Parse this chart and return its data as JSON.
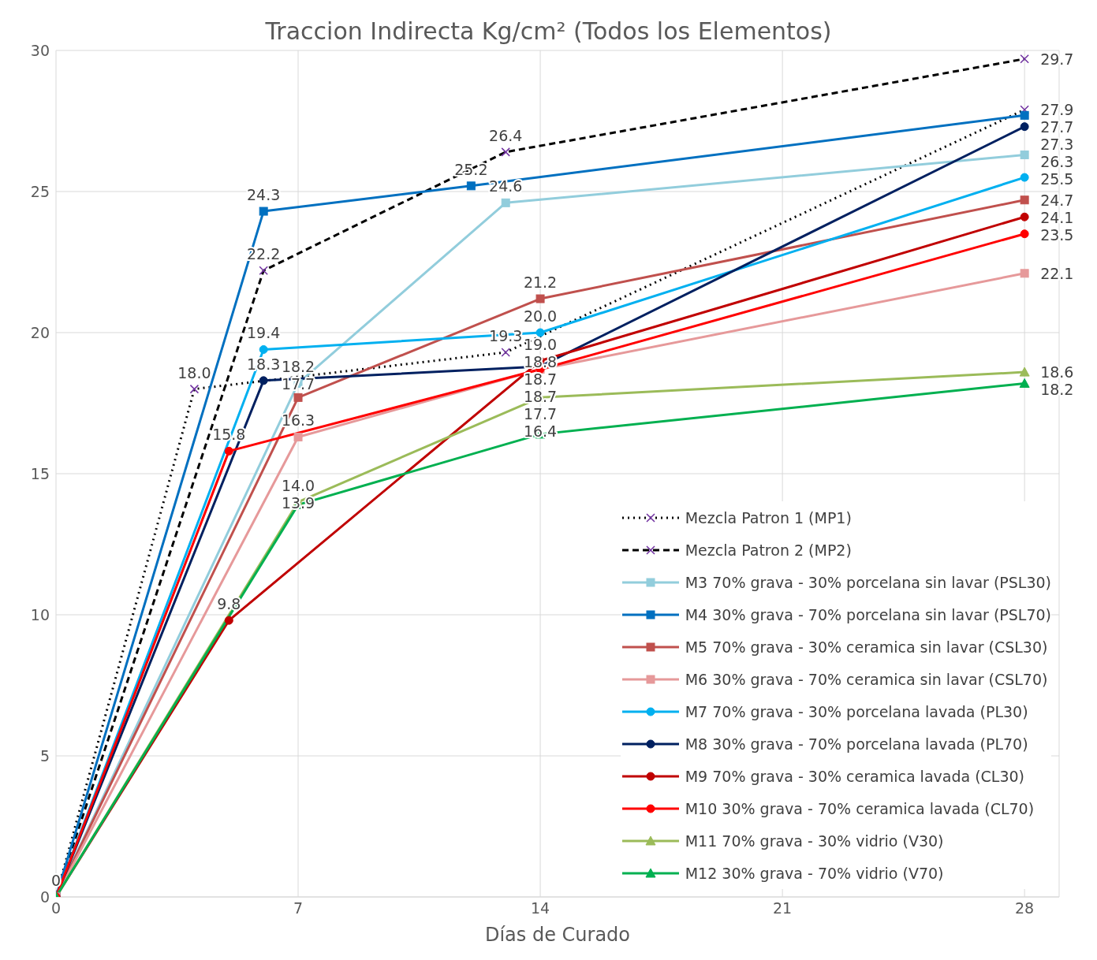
{
  "chart_data": {
    "type": "line",
    "title": "Traccion Indirecta Kg/cm² (Todos los Elementos)",
    "xlabel": "Días de Curado",
    "xlim": [
      0,
      29
    ],
    "xticks": [
      0,
      7,
      14,
      21,
      28
    ],
    "ylim": [
      0,
      30
    ],
    "yticks": [
      0,
      5,
      10,
      15,
      20,
      25,
      30
    ],
    "grid": true,
    "legend": "bottom right",
    "series": [
      {
        "name": "Mezcla Patron 1 (MP1)",
        "color": "#000000",
        "line_style": "dotted",
        "marker": "cross",
        "x": [
          0,
          4,
          13,
          28
        ],
        "values": [
          0,
          18.0,
          19.3,
          27.9
        ],
        "value_labels": [
          "0",
          "18.0",
          "19.3",
          "27.9"
        ]
      },
      {
        "name": "Mezcla Patron 2 (MP2)",
        "color": "#000000",
        "line_style": "dashed",
        "marker": "cross",
        "x": [
          0,
          6,
          13,
          28
        ],
        "values": [
          0,
          22.2,
          26.4,
          29.7
        ],
        "value_labels": [
          null,
          "22.2",
          "26.4",
          "29.7"
        ]
      },
      {
        "name": "M3 70% grava - 30% porcelana sin lavar (PSL30)",
        "color": "#92cddc",
        "marker": "square",
        "x": [
          0,
          7,
          13,
          28
        ],
        "values": [
          0,
          18.2,
          24.6,
          26.3
        ],
        "value_labels": [
          null,
          "18.2",
          "24.6",
          "26.3"
        ]
      },
      {
        "name": "M4 30% grava - 70% porcelana sin lavar (PSL70)",
        "color": "#0070c0",
        "marker": "square",
        "x": [
          0,
          6,
          12,
          28
        ],
        "values": [
          0,
          24.3,
          25.2,
          27.7
        ],
        "value_labels": [
          null,
          "24.3",
          "25.2",
          "27.7"
        ]
      },
      {
        "name": "M5 70% grava - 30% ceramica sin lavar (CSL30)",
        "color": "#c0504d",
        "marker": "square",
        "x": [
          0,
          7,
          14,
          28
        ],
        "values": [
          0,
          17.7,
          21.2,
          24.7
        ],
        "value_labels": [
          null,
          "17.7",
          "21.2",
          "24.7"
        ]
      },
      {
        "name": "M6 30% grava - 70% ceramica sin lavar (CSL70)",
        "color": "#e6999a",
        "marker": "square",
        "x": [
          0,
          7,
          14,
          28
        ],
        "values": [
          0,
          16.3,
          18.7,
          22.1
        ],
        "value_labels": [
          null,
          "16.3",
          "18.7",
          "22.1"
        ]
      },
      {
        "name": "M7 70% grava - 30% porcelana lavada (PL30)",
        "color": "#00b0f0",
        "marker": "circle",
        "x": [
          0,
          6,
          14,
          28
        ],
        "values": [
          0,
          19.4,
          20.0,
          25.5
        ],
        "value_labels": [
          null,
          "19.4",
          "20.0",
          "25.5"
        ]
      },
      {
        "name": "M8 30% grava - 70% porcelana lavada (PL70)",
        "color": "#002060",
        "marker": "circle",
        "x": [
          0,
          6,
          14,
          28
        ],
        "values": [
          0,
          18.3,
          18.8,
          27.3
        ],
        "value_labels": [
          null,
          "18.3",
          "18.8",
          "27.3"
        ]
      },
      {
        "name": "M9 70% grava - 30% ceramica lavada (CL30)",
        "color": "#c00000",
        "marker": "circle",
        "x": [
          0,
          5,
          14,
          28
        ],
        "values": [
          0,
          9.8,
          19.0,
          24.1
        ],
        "value_labels": [
          null,
          "9.8",
          "19.0",
          "24.1"
        ]
      },
      {
        "name": "M10 30% grava - 70% ceramica lavada (CL70)",
        "color": "#ff0000",
        "marker": "circle",
        "x": [
          0,
          5,
          14,
          28
        ],
        "values": [
          0,
          15.8,
          18.7,
          23.5
        ],
        "value_labels": [
          null,
          "15.8",
          "18.7",
          "23.5"
        ]
      },
      {
        "name": "M11 70% grava - 30% vidrio (V30)",
        "color": "#9bbb59",
        "marker": "triangle",
        "x": [
          0,
          7,
          14,
          28
        ],
        "values": [
          0,
          14.0,
          17.7,
          18.6
        ],
        "value_labels": [
          null,
          "14.0",
          "17.7",
          "18.6"
        ]
      },
      {
        "name": "M12 30% grava - 70% vidrio (V70)",
        "color": "#00b050",
        "marker": "triangle",
        "x": [
          0,
          7,
          14,
          28
        ],
        "values": [
          0,
          13.9,
          16.4,
          18.2
        ],
        "value_labels": [
          null,
          "13.9",
          "16.4",
          "18.2"
        ]
      }
    ]
  }
}
